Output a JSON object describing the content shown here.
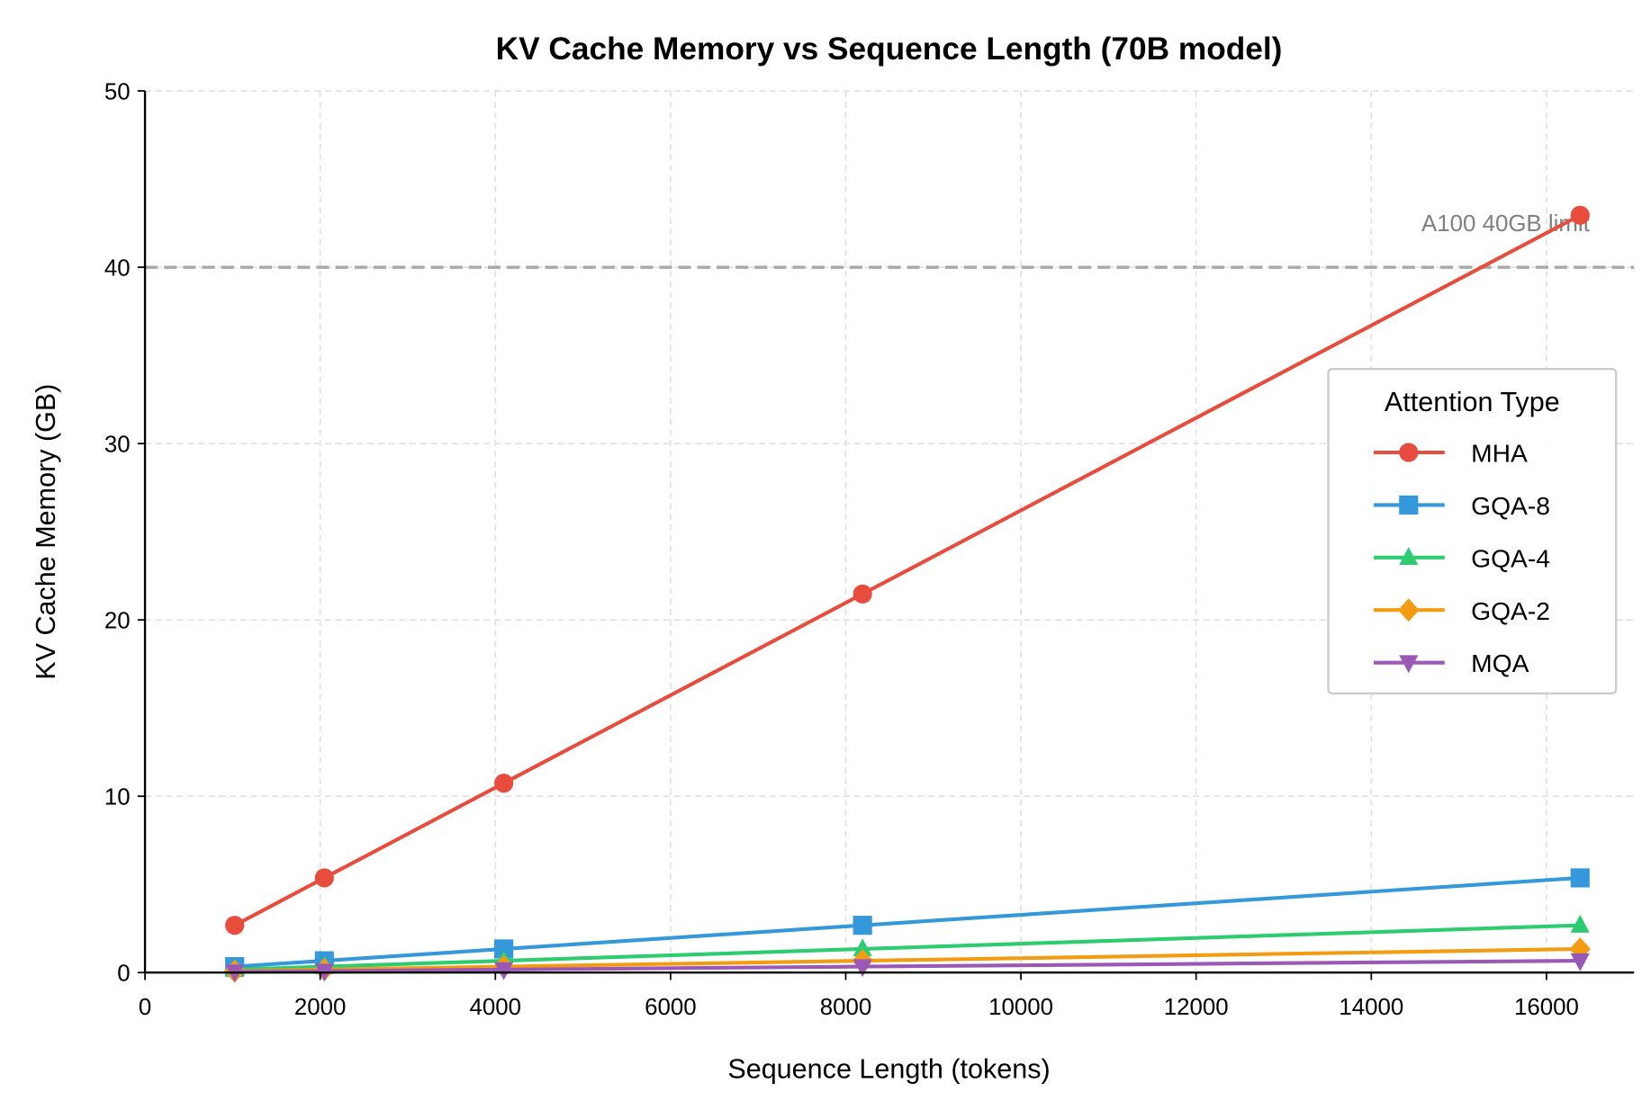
{
  "chart_data": {
    "type": "line",
    "title": "KV Cache Memory vs Sequence Length (70B model)",
    "xlabel": "Sequence Length (tokens)",
    "ylabel": "KV Cache Memory (GB)",
    "xlim": [
      0,
      17000
    ],
    "ylim": [
      0,
      50
    ],
    "xticks": [
      0,
      2000,
      4000,
      6000,
      8000,
      10000,
      12000,
      14000,
      16000
    ],
    "yticks": [
      0,
      10,
      20,
      30,
      40,
      50
    ],
    "grid": true,
    "legend": {
      "title": "Attention Type",
      "placement": "center-right"
    },
    "x": [
      1024,
      2048,
      4096,
      8192,
      16384
    ],
    "series": [
      {
        "name": "MHA",
        "color": "#e74c3c",
        "marker": "circle",
        "values": [
          2.68,
          5.37,
          10.74,
          21.47,
          42.95
        ]
      },
      {
        "name": "GQA-8",
        "color": "#3498db",
        "marker": "square",
        "values": [
          0.34,
          0.67,
          1.34,
          2.68,
          5.37
        ]
      },
      {
        "name": "GQA-4",
        "color": "#2ecc71",
        "marker": "triangle-up",
        "values": [
          0.17,
          0.34,
          0.67,
          1.34,
          2.68
        ]
      },
      {
        "name": "GQA-2",
        "color": "#f39c12",
        "marker": "diamond",
        "values": [
          0.08,
          0.17,
          0.34,
          0.67,
          1.34
        ]
      },
      {
        "name": "MQA",
        "color": "#9b59b6",
        "marker": "triangle-down",
        "values": [
          0.04,
          0.08,
          0.17,
          0.34,
          0.67
        ]
      }
    ],
    "annotations": [
      {
        "type": "hline",
        "y": 40,
        "color": "#aaaaaa",
        "style": "dashed",
        "label": "A100 40GB limit"
      }
    ]
  }
}
